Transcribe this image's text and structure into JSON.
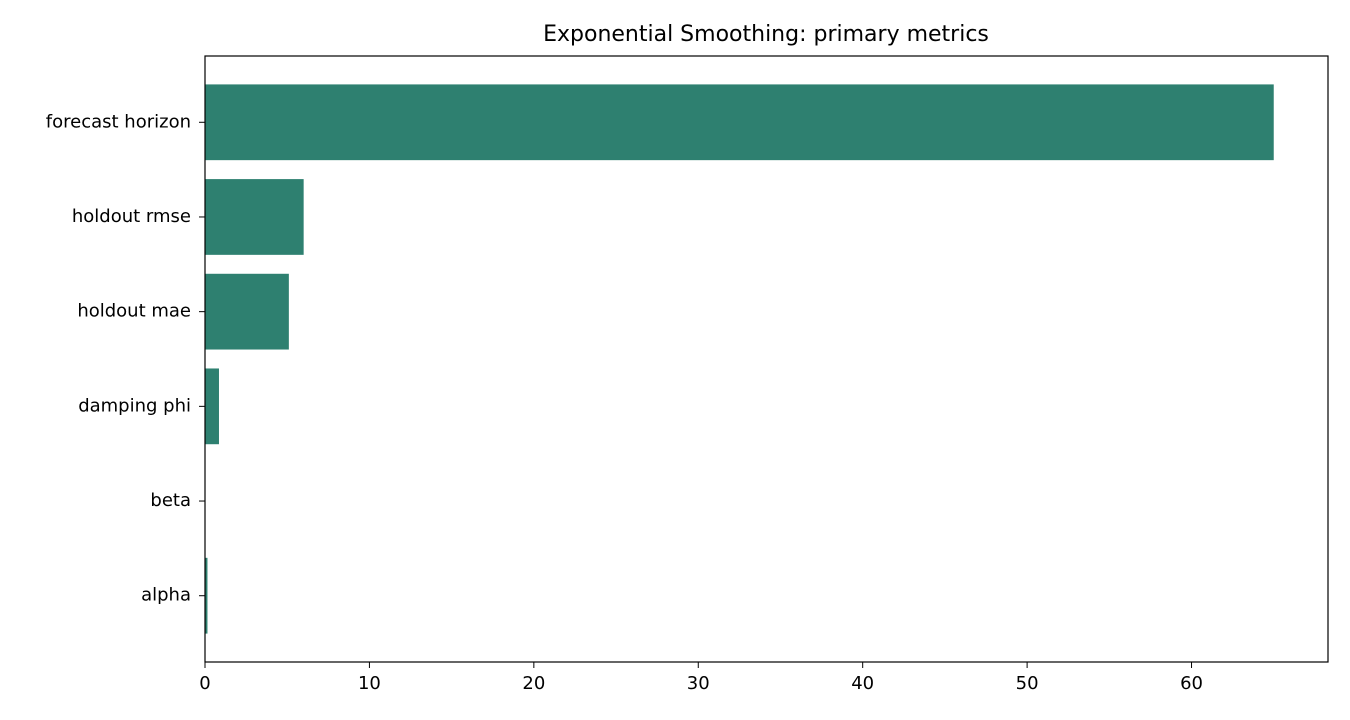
{
  "chart_data": {
    "type": "barh",
    "title": "Exponential Smoothing: primary metrics",
    "categories": [
      "alpha",
      "beta",
      "damping phi",
      "holdout mae",
      "holdout rmse",
      "forecast horizon"
    ],
    "values": [
      0.15,
      0.02,
      0.85,
      5.1,
      6.0,
      65
    ],
    "color": "#2e8070",
    "xlim": [
      0,
      68.3
    ],
    "xticks": [
      0,
      10,
      20,
      30,
      40,
      50,
      60
    ],
    "grid": false
  }
}
